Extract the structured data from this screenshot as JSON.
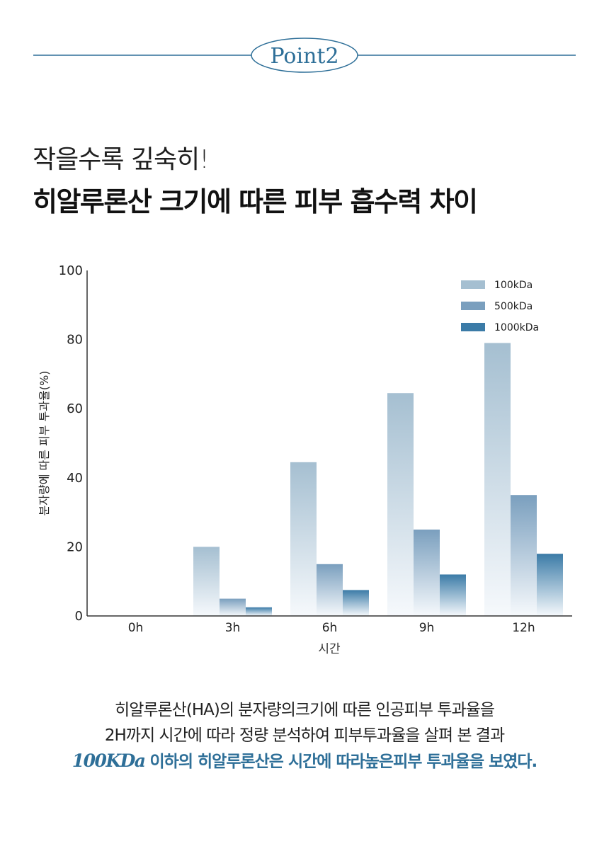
{
  "header": {
    "badge": "Point2",
    "line_color": "#2e6f98"
  },
  "headline": {
    "sub": "작을수록 깊숙히!",
    "main": "히알루론산 크기에 따른 피부 흡수력 차이"
  },
  "chart_data": {
    "type": "bar",
    "categories": [
      "0h",
      "3h",
      "6h",
      "9h",
      "12h"
    ],
    "series": [
      {
        "name": "100kDa",
        "values": [
          0,
          20,
          44.5,
          64.5,
          79
        ],
        "color": "#a5bfd1"
      },
      {
        "name": "500kDa",
        "values": [
          0,
          5,
          15,
          25,
          35
        ],
        "color": "#7a9fbe"
      },
      {
        "name": "1000kDa",
        "values": [
          0,
          2.5,
          7.5,
          12,
          18
        ],
        "color": "#3b7ba7"
      }
    ],
    "title": "",
    "xlabel": "시간",
    "ylabel": "분자량에 따른 피부 투과율(%)",
    "ylim": [
      0,
      100
    ],
    "yticks": [
      "0",
      "20",
      "40",
      "60",
      "80",
      "100"
    ],
    "grid": false,
    "legend": "top-right"
  },
  "description": {
    "line1": "히알루론산(HA)의 분자량의크기에 따른 인공피부 투과율을",
    "line2": "2H까지 시간에 따라 정량 분석하여 피부투과율을 살펴 본 결과",
    "line3_strong": "100KDa",
    "line3_rest": " 이하의 히알루론산은 시간에 따라높은피부 투과율을 보였다."
  }
}
